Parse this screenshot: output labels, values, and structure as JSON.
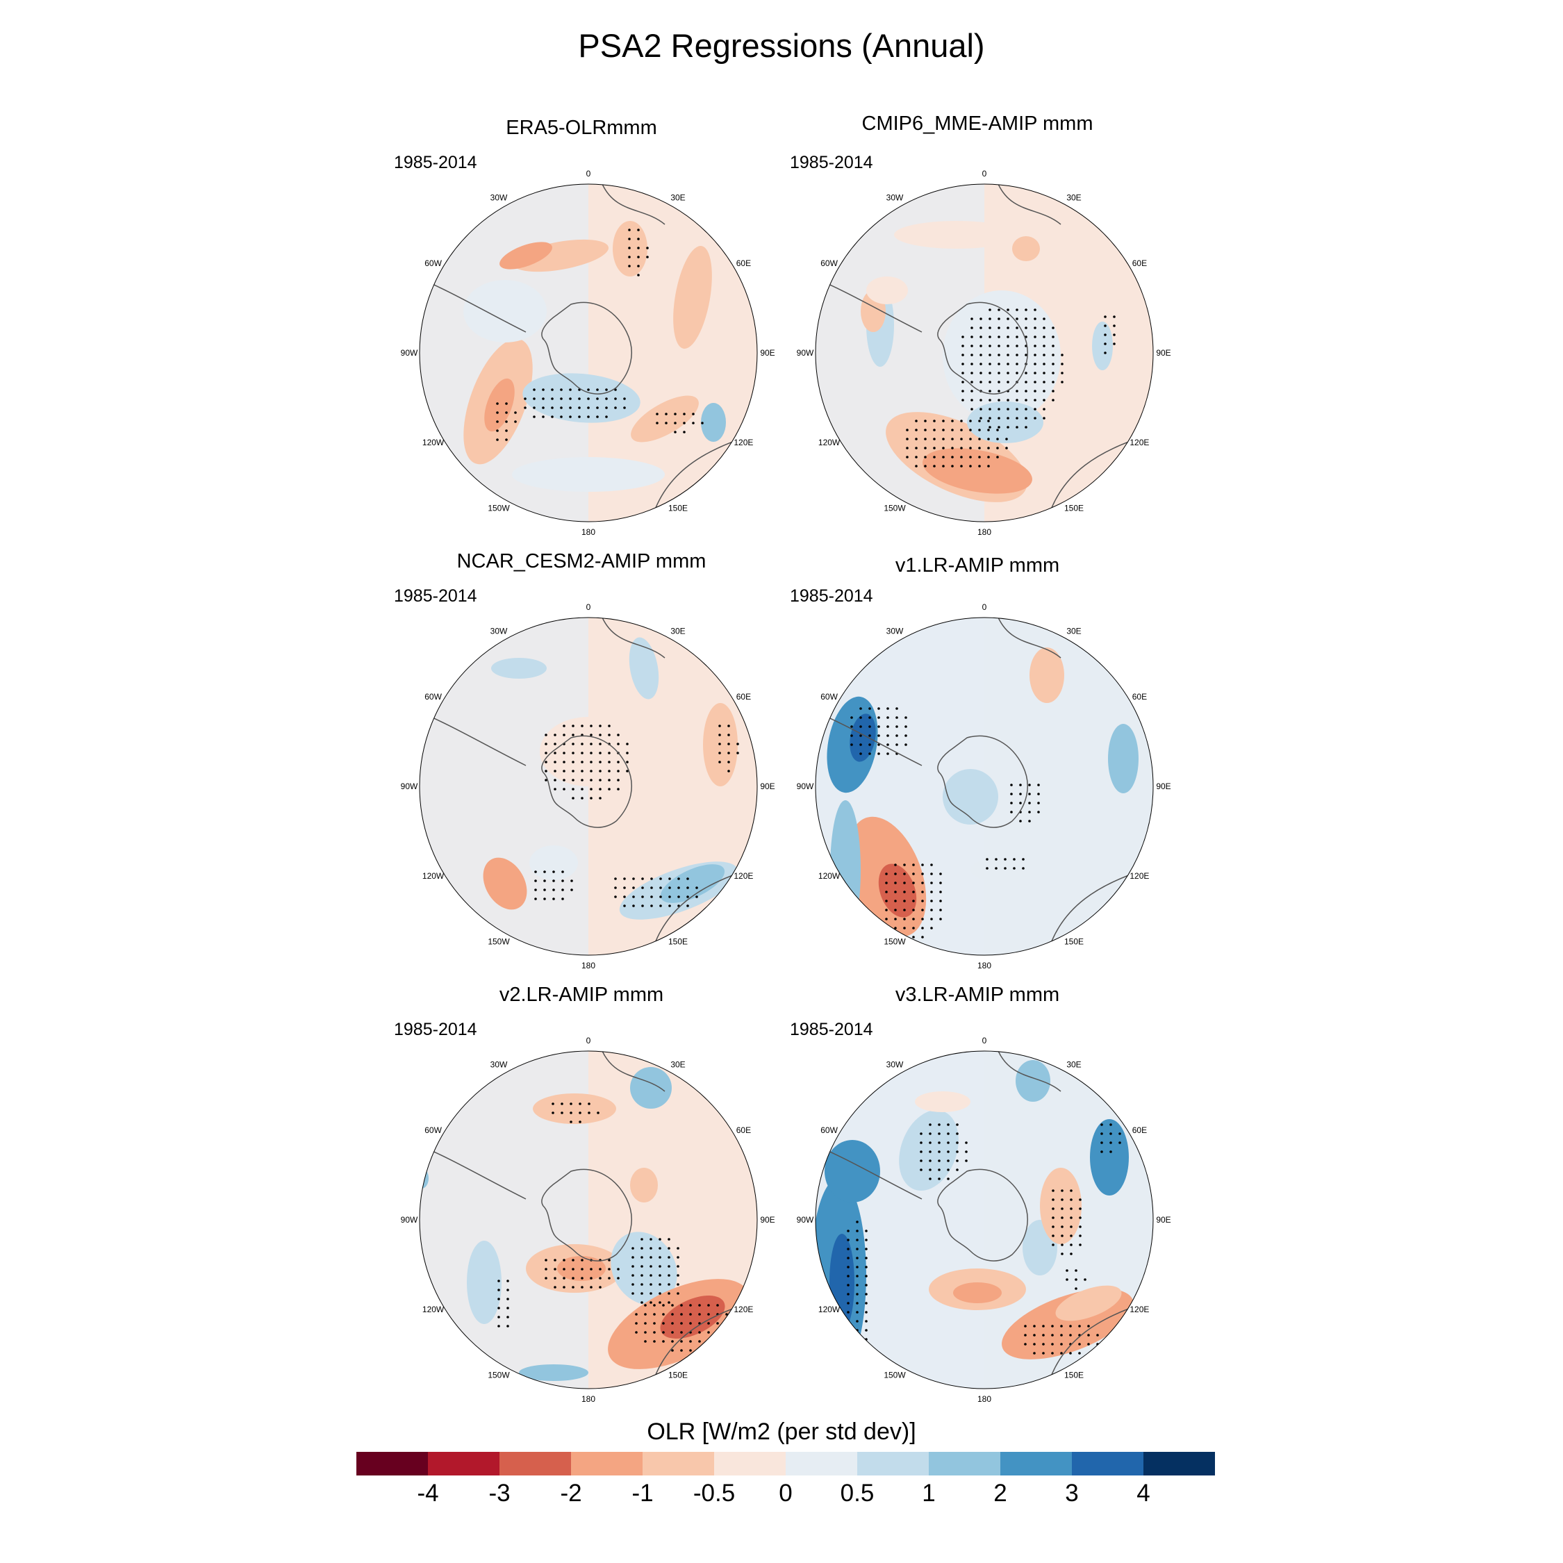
{
  "title": "PSA2 Regressions (Annual)",
  "chart_data": {
    "type": "polar-map-panels",
    "projection": "south-polar-stereographic",
    "variable": "OLR",
    "colorbar": {
      "label": "OLR [W/m2 (per std dev)]",
      "levels": [
        "-4",
        "-3",
        "-2",
        "-1",
        "-0.5",
        "0",
        "0.5",
        "1",
        "2",
        "3",
        "4"
      ],
      "colors": [
        "#67001f",
        "#b2182b",
        "#d6604d",
        "#f4a582",
        "#f8c7ab",
        "#f9e6dc",
        "#e6edf3",
        "#c2dceb",
        "#92c5de",
        "#4393c3",
        "#2166ac",
        "#053061"
      ]
    },
    "longitude_labels": [
      "0",
      "30E",
      "60E",
      "90E",
      "120E",
      "150E",
      "180",
      "150W",
      "120W",
      "90W",
      "60W",
      "30W"
    ],
    "panels": [
      {
        "title": "ERA5-OLRmmm",
        "period": "1985-2014"
      },
      {
        "title": "CMIP6_MME-AMIP  mmm",
        "period": "1985-2014"
      },
      {
        "title": "NCAR_CESM2-AMIP  mmm",
        "period": "1985-2014"
      },
      {
        "title": "v1.LR-AMIP  mmm",
        "period": "1985-2014"
      },
      {
        "title": "v2.LR-AMIP  mmm",
        "period": "1985-2014"
      },
      {
        "title": "v3.LR-AMIP  mmm",
        "period": "1985-2014"
      }
    ]
  }
}
